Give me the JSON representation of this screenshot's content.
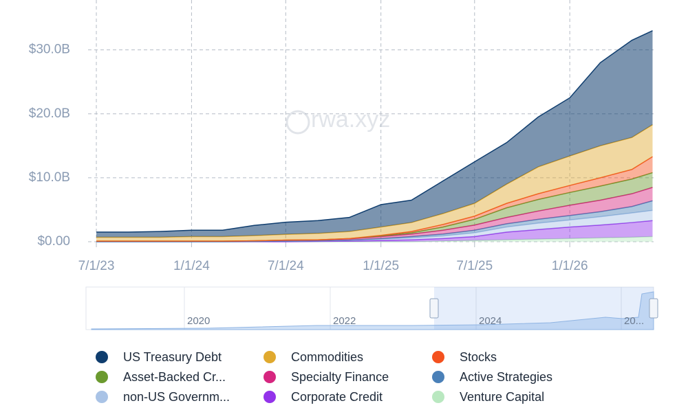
{
  "chart_data": {
    "type": "stacked-area",
    "watermark": "rwa.xyz",
    "x": [
      "2023-07-01",
      "2023-09-01",
      "2023-11-01",
      "2024-01-01",
      "2024-03-01",
      "2024-05-01",
      "2024-07-01",
      "2024-09-01",
      "2024-11-01",
      "2025-01-01",
      "2025-03-01",
      "2025-05-01",
      "2025-07-01",
      "2025-09-01",
      "2025-11-01",
      "2026-01-01",
      "2026-03-01",
      "2026-05-01",
      "2026-06-10"
    ],
    "xlim": [
      "2023-06-15",
      "2026-06-12"
    ],
    "xticks": [
      {
        "value": "2023-07-01",
        "label": "7/1/23"
      },
      {
        "value": "2024-01-01",
        "label": "1/1/24"
      },
      {
        "value": "2024-07-01",
        "label": "7/1/24"
      },
      {
        "value": "2025-01-01",
        "label": "1/1/25"
      },
      {
        "value": "2025-07-01",
        "label": "7/1/25"
      },
      {
        "value": "2026-01-01",
        "label": "1/1/26"
      }
    ],
    "ylim": [
      0,
      37.8
    ],
    "yticks": [
      {
        "value": 0,
        "label": "$0.00"
      },
      {
        "value": 10,
        "label": "$10.0B"
      },
      {
        "value": 20,
        "label": "$20.0B"
      },
      {
        "value": 30,
        "label": "$30.0B"
      }
    ],
    "grid": true,
    "series": [
      {
        "name": "US Treasury Debt",
        "color": "#0f3d6e",
        "values": [
          0.8,
          0.8,
          0.9,
          1.0,
          1.0,
          1.6,
          1.9,
          2.0,
          2.2,
          3.5,
          3.5,
          5.1,
          6.5,
          6.5,
          7.8,
          9.1,
          13,
          15.2,
          14.7
        ]
      },
      {
        "name": "Commodities",
        "color": "#e0a92e",
        "values": [
          0.6,
          0.6,
          0.6,
          0.7,
          0.7,
          0.8,
          0.9,
          1.0,
          1.1,
          1.3,
          1.4,
          1.7,
          2.0,
          3.0,
          4.2,
          4.6,
          5.0,
          5.0,
          5.0
        ]
      },
      {
        "name": "Stocks",
        "color": "#f4511e",
        "values": [
          0,
          0,
          0,
          0,
          0,
          0,
          0,
          0,
          0,
          0.1,
          0.2,
          0.4,
          0.5,
          0.7,
          0.9,
          1.1,
          1.3,
          1.5,
          2.5
        ]
      },
      {
        "name": "Asset-Backed Cr...",
        "color": "#6b9a2f",
        "values": [
          0,
          0,
          0,
          0,
          0,
          0,
          0,
          0,
          0.05,
          0.1,
          0.2,
          0.5,
          0.9,
          1.5,
          1.8,
          2.0,
          2.2,
          2.3,
          2.3
        ]
      },
      {
        "name": "Specialty Finance",
        "color": "#d6267f",
        "values": [
          0.1,
          0.1,
          0.1,
          0.1,
          0.1,
          0.1,
          0.15,
          0.15,
          0.2,
          0.3,
          0.4,
          0.6,
          0.8,
          1.0,
          1.3,
          1.6,
          1.8,
          2.0,
          2.1
        ]
      },
      {
        "name": "Active Strategies",
        "color": "#4a80b8",
        "values": [
          0,
          0,
          0,
          0,
          0,
          0,
          0,
          0,
          0,
          0.1,
          0.2,
          0.3,
          0.4,
          0.5,
          0.6,
          0.7,
          0.8,
          1.0,
          1.5
        ]
      },
      {
        "name": "non-US Governm...",
        "color": "#a9c3e6",
        "values": [
          0,
          0,
          0,
          0,
          0,
          0.05,
          0.1,
          0.1,
          0.15,
          0.2,
          0.3,
          0.4,
          0.6,
          0.8,
          1.0,
          1.1,
          1.3,
          1.5,
          1.6
        ]
      },
      {
        "name": "Corporate Credit",
        "color": "#9333ea",
        "values": [
          0,
          0,
          0,
          0,
          0,
          0,
          0,
          0.05,
          0.1,
          0.2,
          0.3,
          0.4,
          0.6,
          1.2,
          1.5,
          1.8,
          2.0,
          2.3,
          2.5
        ]
      },
      {
        "name": "Venture Capital",
        "color": "#b9e8c0",
        "values": [
          0,
          0,
          0,
          0,
          0,
          0,
          0,
          0,
          0,
          0,
          0,
          0.1,
          0.2,
          0.3,
          0.4,
          0.5,
          0.6,
          0.7,
          0.8
        ]
      }
    ],
    "navigator": {
      "labels": [
        "2020",
        "2022",
        "2024",
        "20..."
      ]
    }
  }
}
